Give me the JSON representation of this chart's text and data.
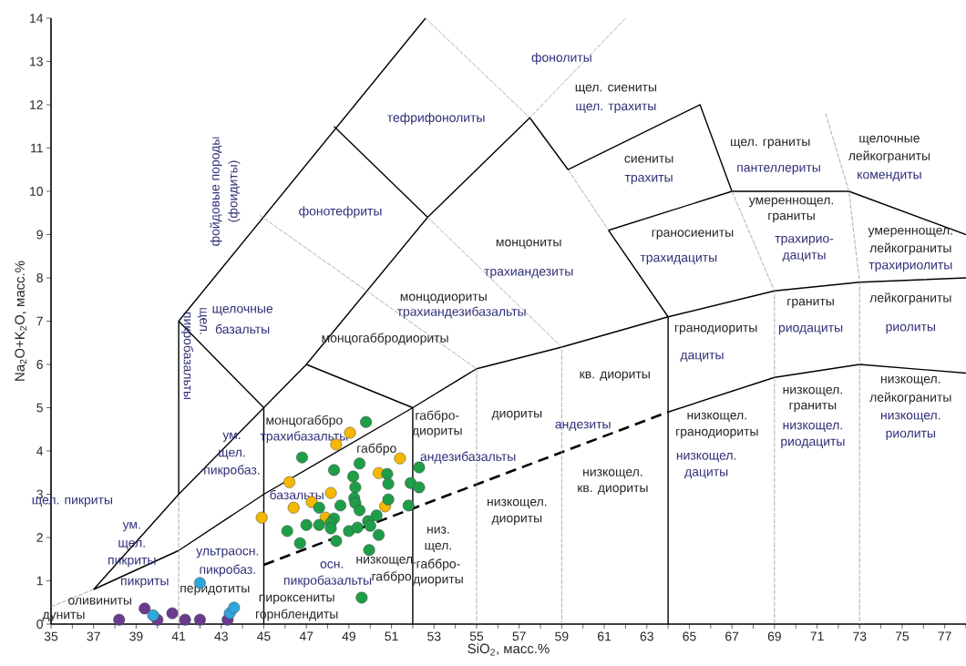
{
  "chart_data": {
    "type": "scatter",
    "xlabel": "SiO$_{2}$, масс.%",
    "ylabel": "Na$_{2}$O+K$_{2}$O, масс.%",
    "xlim": [
      35,
      78
    ],
    "ylim": [
      0,
      14
    ],
    "xticks": [
      35,
      {
        "value": 36,
        "label": null
      },
      37,
      {
        "value": 38,
        "label": null
      },
      39,
      {
        "value": 40,
        "label": null
      },
      41,
      {
        "value": 42,
        "label": null
      },
      43,
      {
        "value": 44,
        "label": null
      },
      45,
      {
        "value": 46,
        "label": null
      },
      47,
      {
        "value": 48,
        "label": null
      },
      49,
      {
        "value": 50,
        "label": null
      },
      51,
      {
        "value": 52,
        "label": null
      },
      53,
      {
        "value": 54,
        "label": null
      },
      55,
      {
        "value": 56,
        "label": null
      },
      57,
      {
        "value": 58,
        "label": null
      },
      59,
      {
        "value": 60,
        "label": null
      },
      61,
      {
        "value": 62,
        "label": null
      },
      63,
      {
        "value": 64,
        "label": null
      },
      65,
      {
        "value": 66,
        "label": null
      },
      67,
      {
        "value": 68,
        "label": null
      },
      69,
      {
        "value": 70,
        "label": null
      },
      71,
      {
        "value": 72,
        "label": null
      },
      73,
      {
        "value": 74,
        "label": null
      },
      75,
      {
        "value": 76,
        "label": null
      },
      77,
      {
        "value": 78,
        "label": null
      }
    ],
    "yticks": [
      0,
      1,
      2,
      3,
      4,
      5,
      6,
      7,
      8,
      9,
      10,
      11,
      12,
      13,
      14
    ],
    "grid": false,
    "series": [
      {
        "type": "line",
        "color": "#000000",
        "line_style": "solid",
        "marker": "none",
        "x": [
          37,
          41,
          45,
          47,
          52,
          52
        ],
        "values": [
          0.8,
          3,
          5,
          6,
          5,
          0
        ]
      },
      {
        "type": "line",
        "color": "#000000",
        "line_style": "solid",
        "marker": "none",
        "x": [
          37,
          41,
          45,
          52,
          55,
          59,
          64,
          69,
          73,
          78
        ],
        "values": [
          0.8,
          1.7,
          3,
          5,
          5.9,
          6.4,
          7.1,
          7.7,
          7.9,
          8
        ]
      },
      {
        "type": "line",
        "color": "#000000",
        "line_style": "solid",
        "marker": "none",
        "x": [
          41,
          41,
          45,
          45
        ],
        "values": [
          3,
          7,
          5,
          0
        ]
      },
      {
        "type": "line",
        "color": "#000000",
        "line_style": "solid",
        "marker": "none",
        "x": [
          41,
          52.6
        ],
        "values": [
          7,
          14
        ]
      },
      {
        "type": "line",
        "color": "#000000",
        "line_style": "solid",
        "marker": "none",
        "x": [
          48.3,
          52.7
        ],
        "values": [
          11.5,
          9.4
        ]
      },
      {
        "type": "line",
        "color": "#000000",
        "line_style": "solid",
        "marker": "none",
        "x": [
          47,
          52.7,
          57.5,
          59.3,
          65.5,
          67,
          72.5,
          78
        ],
        "values": [
          6,
          9.4,
          11.7,
          10.5,
          12,
          10,
          10,
          9
        ]
      },
      {
        "type": "line",
        "color": "#000000",
        "line_style": "solid",
        "marker": "none",
        "x": [
          67,
          61.2,
          64,
          64
        ],
        "values": [
          10,
          9.1,
          7.1,
          0
        ]
      },
      {
        "type": "line",
        "color": "#000000",
        "line_style": "solid",
        "marker": "none",
        "x": [
          64,
          69,
          73,
          78
        ],
        "values": [
          4.9,
          5.7,
          6,
          5.8
        ]
      },
      {
        "type": "line",
        "color": "#000000",
        "line_style": "dashed",
        "marker": "none",
        "x": [
          45,
          64
        ],
        "values": [
          1.37,
          4.9
        ]
      },
      {
        "type": "line",
        "color": "#999999",
        "line_style": "dotted",
        "marker": "none",
        "x": [
          41,
          41
        ],
        "values": [
          0,
          3
        ]
      },
      {
        "type": "line",
        "color": "#999999",
        "line_style": "dotted",
        "marker": "none",
        "x": [
          35,
          37
        ],
        "values": [
          0.4,
          0.8
        ]
      },
      {
        "type": "line",
        "color": "#999999",
        "line_style": "dotted",
        "marker": "none",
        "x": [
          44.8,
          55,
          55
        ],
        "values": [
          9.45,
          5.9,
          0
        ]
      },
      {
        "type": "line",
        "color": "#999999",
        "line_style": "dotted",
        "marker": "none",
        "x": [
          52.7,
          59,
          59
        ],
        "values": [
          9.4,
          6.4,
          0
        ]
      },
      {
        "type": "line",
        "color": "#999999",
        "line_style": "dotted",
        "marker": "none",
        "x": [
          52.6,
          57.5,
          62
        ],
        "values": [
          14,
          11.7,
          14
        ]
      },
      {
        "type": "line",
        "color": "#999999",
        "line_style": "dotted",
        "marker": "none",
        "x": [
          59.3,
          61.2
        ],
        "values": [
          10.5,
          9.1
        ]
      },
      {
        "type": "line",
        "color": "#999999",
        "line_style": "dotted",
        "marker": "none",
        "x": [
          67,
          69,
          69
        ],
        "values": [
          10,
          7.7,
          0
        ]
      },
      {
        "type": "line",
        "color": "#999999",
        "line_style": "dotted",
        "marker": "none",
        "x": [
          71.4,
          72.5,
          73,
          73
        ],
        "values": [
          11.8,
          10,
          7.9,
          0
        ]
      },
      {
        "color": "#6b3a8e",
        "marker": "circle",
        "x": [
          38.2,
          39.4,
          40.0,
          40.7,
          41.3,
          42.0,
          43.3
        ],
        "values": [
          0.1,
          0.36,
          0.1,
          0.25,
          0.1,
          0.1,
          0.1
        ]
      },
      {
        "color": "#2ea6dc",
        "marker": "circle",
        "x": [
          39.8,
          42.0,
          43.4,
          43.6
        ],
        "values": [
          0.2,
          0.95,
          0.25,
          0.38
        ]
      },
      {
        "color": "#f5b800",
        "marker": "circle",
        "x": [
          49.05,
          48.4,
          51.4,
          46.2,
          50.4,
          48.15,
          46.4,
          47.25,
          47.9,
          50.7,
          44.9
        ],
        "values": [
          4.42,
          4.15,
          3.83,
          3.28,
          3.49,
          3.03,
          2.69,
          2.82,
          2.46,
          2.72,
          2.46
        ]
      },
      {
        "color": "#1f9e48",
        "marker": "circle",
        "x": [
          49.8,
          46.8,
          49.5,
          48.3,
          49.2,
          50.8,
          52.3,
          50.85,
          49.3,
          51.9,
          52.3,
          49.25,
          50.85,
          49.3,
          47.6,
          48.6,
          51.8,
          49.5,
          48.3,
          50.3,
          47.0,
          47.6,
          48.15,
          49.9,
          46.1,
          48.15,
          50.0,
          49.0,
          49.4,
          50.4,
          46.7,
          48.4,
          49.95,
          49.6
        ],
        "values": [
          4.67,
          3.85,
          3.71,
          3.56,
          3.41,
          3.47,
          3.62,
          3.24,
          3.16,
          3.26,
          3.16,
          2.91,
          2.88,
          2.8,
          2.69,
          2.74,
          2.74,
          2.63,
          2.44,
          2.51,
          2.29,
          2.29,
          2.34,
          2.38,
          2.15,
          2.21,
          2.27,
          2.15,
          2.23,
          2.06,
          1.87,
          1.92,
          1.71,
          0.61
        ]
      }
    ],
    "annotations": [
      "фонолиты",
      "тефрифонолиты",
      "щел. сиениты",
      "щел. трахиты",
      "сиениты",
      "трахиты",
      "щел. граниты",
      "пантеллериты",
      "щелочные",
      "лейкограниты",
      "комендиты",
      "фонотефриты",
      "фойдовые породы",
      "(фоидиты)",
      "щел.",
      "пикробазальты",
      "монцониты",
      "трахиандезиты",
      "монцодиориты",
      "трахиандезибазальты",
      "монцогаббродиориты",
      "щелочные",
      "базальты",
      "граносиениты",
      "трахидациты",
      "умереннощел.",
      "граниты",
      "трахирио-",
      "дациты",
      "умереннощел.",
      "лейкограниты",
      "трахириолиты",
      "граниты",
      "риодациты",
      "лейкограниты",
      "риолиты",
      "гранодиориты",
      "дациты",
      "кв. диориты",
      "диориты",
      "андезиты",
      "низкощел.",
      "кв. диориты",
      "низкощел.",
      "диориты",
      "низкощел.",
      "гранодиориты",
      "низкощел.",
      "дациты",
      "низкощел.",
      "граниты",
      "низкощел.",
      "риодациты",
      "низкощел.",
      "лейкограниты",
      "низкощел.",
      "риолиты",
      "габбро-",
      "диориты",
      "андезибазальты",
      "габбро",
      "монцогаббро",
      "трахибазальты",
      "базальты",
      "ум.",
      "щел.",
      "пикробаз.",
      "щел. пикриты",
      "ум.",
      "щел.",
      "пикриты",
      "ультраосн.",
      "пикробаз.",
      "пикриты",
      "оливиниты",
      "дуниты",
      "перидотиты",
      "пироксениты",
      "горнблендиты",
      "низкощел.",
      "габбро",
      "осн.",
      "пикробазальты",
      "низ.",
      "щел.",
      "габбро-",
      "диориты"
    ]
  }
}
